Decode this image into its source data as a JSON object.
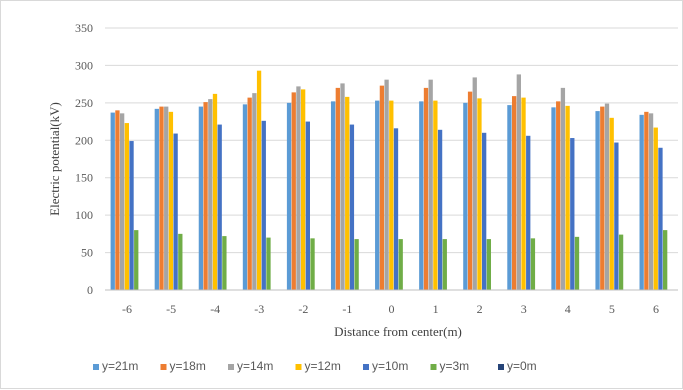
{
  "chart_data": {
    "type": "bar",
    "title": "",
    "xlabel": "Distance from center(m)",
    "ylabel": "Electric potential(kV)",
    "ylim": [
      0,
      350
    ],
    "yticks": [
      0,
      50,
      100,
      150,
      200,
      250,
      300,
      350
    ],
    "grid": true,
    "legend_position": "bottom",
    "categories": [
      "-6",
      "-5",
      "-4",
      "-3",
      "-2",
      "-1",
      "0",
      "1",
      "2",
      "3",
      "4",
      "5",
      "6"
    ],
    "series": [
      {
        "name": "y=21m",
        "color": "#5b9bd5",
        "values": [
          237,
          242,
          245,
          248,
          250,
          252,
          253,
          252,
          250,
          247,
          244,
          239,
          234
        ]
      },
      {
        "name": "y=18m",
        "color": "#ed7d31",
        "values": [
          240,
          245,
          251,
          257,
          264,
          270,
          273,
          270,
          265,
          259,
          252,
          245,
          238
        ]
      },
      {
        "name": "y=14m",
        "color": "#a5a5a5",
        "values": [
          236,
          245,
          255,
          263,
          272,
          276,
          281,
          281,
          284,
          288,
          270,
          249,
          236
        ]
      },
      {
        "name": "y=12m",
        "color": "#ffc000",
        "values": [
          223,
          238,
          262,
          293,
          268,
          258,
          253,
          253,
          256,
          257,
          246,
          230,
          217
        ]
      },
      {
        "name": "y=10m",
        "color": "#4472c4",
        "values": [
          199,
          209,
          221,
          226,
          225,
          221,
          216,
          214,
          210,
          206,
          203,
          197,
          190
        ]
      },
      {
        "name": "y=3m",
        "color": "#70ad47",
        "values": [
          80,
          75,
          72,
          70,
          69,
          68,
          68,
          68,
          68,
          69,
          71,
          74,
          80
        ]
      },
      {
        "name": "y=0m",
        "color": "#264478",
        "values": [
          0,
          0,
          0,
          0,
          0,
          0,
          0,
          0,
          0,
          0,
          0,
          0,
          0
        ]
      }
    ]
  }
}
